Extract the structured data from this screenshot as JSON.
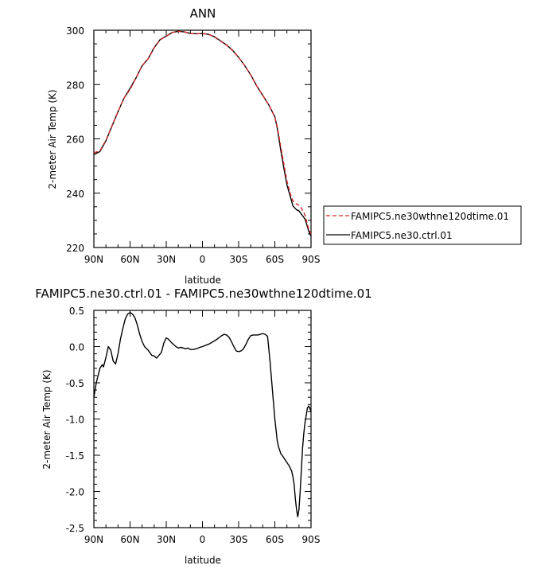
{
  "chart_data": [
    {
      "type": "line",
      "title": "ANN",
      "xlabel": "latitude",
      "ylabel": "2-meter Air Temp (K)",
      "xlim": [
        90,
        -90
      ],
      "ylim": [
        220,
        300
      ],
      "x_ticks": [
        90,
        60,
        30,
        0,
        -30,
        -60,
        -90
      ],
      "x_tick_labels": [
        "90N",
        "60N",
        "30N",
        "0",
        "30S",
        "60S",
        "90S"
      ],
      "y_ticks": [
        220,
        240,
        260,
        280,
        300
      ],
      "y_tick_labels": [
        "220",
        "240",
        "260",
        "280",
        "300"
      ],
      "legend_position": "right",
      "grid": false,
      "series": [
        {
          "name": "FAMIPC5.ne30wthne120dtime.01",
          "color": "#d62728",
          "dash": "dashed",
          "x": [
            90,
            85,
            80,
            75,
            70,
            65,
            60,
            55,
            50,
            45,
            40,
            35,
            30,
            25,
            20,
            15,
            10,
            5,
            0,
            -5,
            -10,
            -15,
            -20,
            -25,
            -30,
            -35,
            -40,
            -45,
            -50,
            -55,
            -60,
            -62,
            -65,
            -68,
            -70,
            -73,
            -75,
            -78,
            -80,
            -82,
            -85,
            -87,
            -88,
            -90
          ],
          "y": [
            254.9,
            255.6,
            259.5,
            264.8,
            270,
            275,
            278.2,
            282.5,
            287,
            289.5,
            293.5,
            296.5,
            297.8,
            299.2,
            299.6,
            299.4,
            298.8,
            298.7,
            298.8,
            298.5,
            297.5,
            296,
            294.5,
            292.5,
            290,
            287,
            283.5,
            279.5,
            276,
            272.5,
            268,
            264.5,
            257,
            249.5,
            244.5,
            239.5,
            237.2,
            236,
            235.5,
            234.5,
            232,
            228.5,
            227,
            225
          ]
        },
        {
          "name": "FAMIPC5.ne30.ctrl.01",
          "color": "#000000",
          "dash": "solid",
          "x": [
            90,
            85,
            80,
            75,
            70,
            65,
            60,
            55,
            50,
            45,
            40,
            35,
            30,
            25,
            20,
            15,
            10,
            5,
            0,
            -5,
            -10,
            -15,
            -20,
            -25,
            -30,
            -35,
            -40,
            -45,
            -50,
            -55,
            -60,
            -62,
            -65,
            -68,
            -70,
            -73,
            -75,
            -78,
            -80,
            -82,
            -85,
            -87,
            -88,
            -90
          ],
          "y": [
            254.2,
            255.3,
            259.3,
            264.7,
            270,
            275,
            278.6,
            282.5,
            286.9,
            289.5,
            293.6,
            296.6,
            297.8,
            299.2,
            299.6,
            299.4,
            298.8,
            298.7,
            298.8,
            298.5,
            297.6,
            296.1,
            294.6,
            292.6,
            290,
            287,
            283.6,
            279.5,
            276,
            272.5,
            268.2,
            264,
            255.6,
            248,
            243.1,
            238.5,
            235.3,
            233.9,
            233.5,
            232.3,
            230.5,
            227.7,
            226.1,
            224.2
          ]
        }
      ]
    },
    {
      "type": "line",
      "title": "FAMIPC5.ne30.ctrl.01 - FAMIPC5.ne30wthne120dtime.01",
      "xlabel": "latitude",
      "ylabel": "2-meter Air Temp (K)",
      "xlim": [
        90,
        -90
      ],
      "ylim": [
        -2.5,
        0.5
      ],
      "x_ticks": [
        90,
        60,
        30,
        0,
        -30,
        -60,
        -90
      ],
      "x_tick_labels": [
        "90N",
        "60N",
        "30N",
        "0",
        "30S",
        "60S",
        "90S"
      ],
      "y_ticks": [
        -2.5,
        -2.0,
        -1.5,
        -1.0,
        -0.5,
        0.0,
        0.5
      ],
      "y_tick_labels": [
        "-2.5",
        "-2.0",
        "-1.5",
        "-1.0",
        "-0.5",
        "0.0",
        "0.5"
      ],
      "grid": false,
      "series": [
        {
          "color": "#000000",
          "dash": "solid",
          "x": [
            90,
            88,
            85,
            83,
            82,
            80,
            78,
            76,
            74,
            72,
            70,
            68,
            66,
            64,
            62,
            60,
            58,
            56,
            54,
            52,
            50,
            48,
            45,
            42,
            40,
            38,
            36,
            34,
            32,
            30,
            28,
            26,
            24,
            22,
            20,
            18,
            16,
            14,
            12,
            10,
            8,
            5,
            2,
            0,
            -3,
            -6,
            -9,
            -12,
            -15,
            -18,
            -20,
            -22,
            -24,
            -26,
            -28,
            -30,
            -32,
            -34,
            -36,
            -38,
            -40,
            -42,
            -44,
            -46,
            -48,
            -50,
            -52,
            -54,
            -56,
            -58,
            -59,
            -60,
            -61,
            -62,
            -63,
            -64,
            -65,
            -66,
            -68,
            -70,
            -72,
            -74,
            -75,
            -76,
            -77,
            -78,
            -79,
            -80,
            -81,
            -82,
            -83,
            -84,
            -85,
            -86,
            -87,
            -88,
            -89,
            -90
          ],
          "y": [
            -0.7,
            -0.5,
            -0.3,
            -0.25,
            -0.28,
            -0.15,
            0.0,
            -0.05,
            -0.2,
            -0.24,
            -0.1,
            0.1,
            0.25,
            0.38,
            0.45,
            0.47,
            0.45,
            0.4,
            0.3,
            0.17,
            0.07,
            0.0,
            -0.05,
            -0.12,
            -0.13,
            -0.16,
            -0.12,
            -0.08,
            0.05,
            0.12,
            0.1,
            0.06,
            0.03,
            0.0,
            -0.02,
            -0.01,
            -0.02,
            -0.03,
            -0.02,
            -0.04,
            -0.04,
            -0.03,
            -0.01,
            0.0,
            0.02,
            0.04,
            0.07,
            0.1,
            0.14,
            0.17,
            0.16,
            0.13,
            0.07,
            0.0,
            -0.06,
            -0.07,
            -0.06,
            -0.03,
            0.03,
            0.1,
            0.15,
            0.16,
            0.16,
            0.16,
            0.17,
            0.18,
            0.17,
            0.14,
            -0.2,
            -0.6,
            -0.8,
            -1.0,
            -1.15,
            -1.3,
            -1.38,
            -1.43,
            -1.48,
            -1.5,
            -1.55,
            -1.6,
            -1.65,
            -1.72,
            -1.8,
            -1.9,
            -2.1,
            -2.25,
            -2.35,
            -2.25,
            -2.0,
            -1.7,
            -1.4,
            -1.2,
            -1.05,
            -0.95,
            -0.85,
            -0.82,
            -0.85,
            -0.9
          ]
        }
      ]
    }
  ]
}
